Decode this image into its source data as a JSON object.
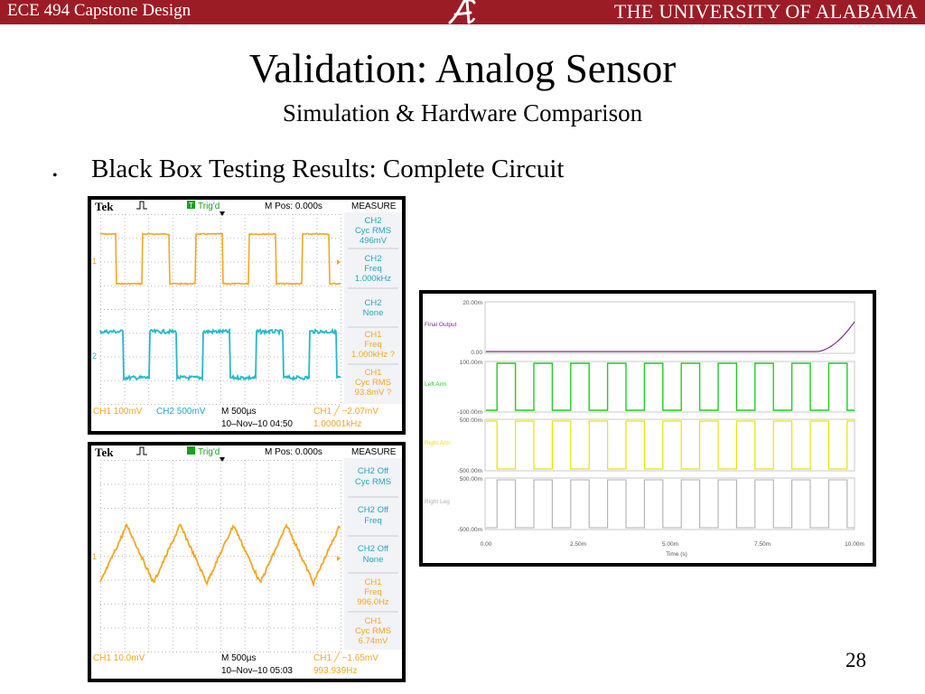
{
  "header": {
    "course": "ECE 494 Capstone Design",
    "university": "THE UNIVERSITY OF ALABAMA",
    "logo_icon": "script-a-logo-icon",
    "bar_color": "#9c1c26"
  },
  "slide": {
    "title": "Validation: Analog Sensor",
    "subtitle": "Simulation & Hardware Comparison",
    "bullet": "Black Box Testing Results: Complete Circuit",
    "page_number": "28"
  },
  "scope1": {
    "brand": "Tek",
    "trig": "Trig'd",
    "trig_badge": "T",
    "mpos": "M Pos: 0.000s",
    "measure": "MEASURE",
    "ch1_marker": "1",
    "ch2_marker": "2",
    "measurements": [
      {
        "l1": "CH2",
        "l2": "Cyc RMS",
        "l3": "496mV"
      },
      {
        "l1": "CH2",
        "l2": "Freq",
        "l3": "1.000kHz"
      },
      {
        "l1": "CH2",
        "l2": "None",
        "l3": ""
      },
      {
        "l1": "CH1",
        "l2": "Freq",
        "l3": "1.000kHz ?"
      },
      {
        "l1": "CH1",
        "l2": "Cyc RMS",
        "l3": "93.8mV ?"
      }
    ],
    "bottom": {
      "ch1": "CH1  100mV",
      "ch2": "CH2  500mV",
      "m": "M 500µs",
      "trigger": "CH1 ╱ −2.07mV",
      "date": "10–Nov–10 04:50",
      "freq": "1.00001kHz"
    }
  },
  "scope2": {
    "brand": "Tek",
    "trig": "Trig'd",
    "trig_badge": "",
    "mpos": "M Pos: 0.000s",
    "measure": "MEASURE",
    "ch1_marker": "1",
    "measurements": [
      {
        "l1": "CH2 Off",
        "l2": "Cyc RMS",
        "l3": ""
      },
      {
        "l1": "CH2 Off",
        "l2": "Freq",
        "l3": ""
      },
      {
        "l1": "CH2 Off",
        "l2": "None",
        "l3": ""
      },
      {
        "l1": "CH1",
        "l2": "Freq",
        "l3": "996.0Hz"
      },
      {
        "l1": "CH1",
        "l2": "Cyc RMS",
        "l3": "6.74mV"
      }
    ],
    "bottom": {
      "ch1": "CH1  10.0mV",
      "ch2": "",
      "m": "M 500µs",
      "trigger": "CH1 ╱ −1.65mV",
      "date": "10–Nov–10 05:03",
      "freq": "993.939Hz"
    }
  },
  "simulation": {
    "x_ticks": [
      "0.00",
      "2.50m",
      "5.00m",
      "7.50m",
      "10.00m"
    ],
    "xlabel": "Time (s)",
    "panels": [
      {
        "name": "Final Output",
        "top": "20.00m",
        "bottom": "0.00",
        "color": "#7b2d8e"
      },
      {
        "name": "Left Arm",
        "top": "100.00m",
        "bottom": "-100.00m",
        "color": "#22cc22"
      },
      {
        "name": "Right Arm",
        "top": "500.00m",
        "bottom": "-500.00m",
        "color": "#e6e600"
      },
      {
        "name": "Right Leg",
        "top": "500.00m",
        "bottom": "-500.00m",
        "color": "#b0b0b0"
      }
    ]
  }
}
